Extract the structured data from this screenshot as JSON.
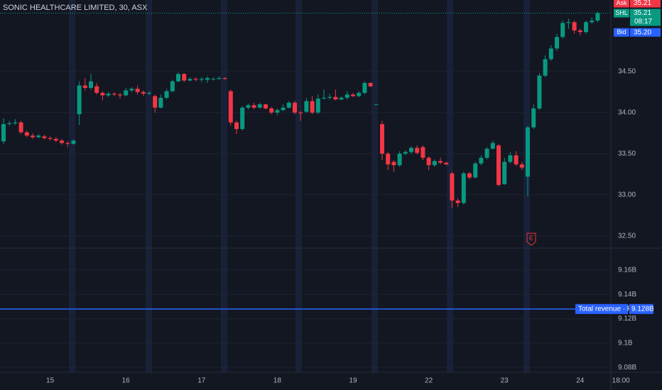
{
  "chart_data": [
    {
      "type": "candlestick",
      "title": "SONIC HEALTHCARE LIMITED, 30, ASX",
      "categories": [
        null,
        null,
        null,
        null,
        null,
        null,
        null,
        null,
        "15",
        null,
        null,
        null,
        null,
        null,
        null,
        null,
        null,
        null,
        null,
        null,
        null,
        "16",
        null,
        null,
        null,
        null,
        null,
        null,
        null,
        null,
        null,
        null,
        null,
        null,
        "17",
        null,
        null,
        null,
        null,
        null,
        null,
        null,
        null,
        null,
        null,
        null,
        null,
        "18",
        null,
        null,
        null,
        null,
        null,
        null,
        null,
        null,
        null,
        null,
        null,
        null,
        "19",
        null,
        null,
        null,
        null,
        null,
        null,
        null,
        null,
        null,
        null,
        null,
        null,
        "22",
        null,
        null,
        null,
        null,
        null,
        null,
        null,
        null,
        null,
        null,
        null,
        null,
        "23",
        null,
        null,
        null,
        null,
        null,
        null,
        null,
        null,
        null,
        null,
        null,
        null,
        "24",
        null,
        null,
        null,
        null,
        null,
        null,
        "18:00"
      ],
      "open": [
        33.65,
        33.86,
        33.87,
        33.88,
        33.76,
        33.72,
        33.7,
        33.71,
        33.69,
        33.68,
        33.66,
        33.63,
        33.62,
        33.98,
        34.33,
        34.3,
        34.32,
        34.24,
        34.21,
        34.23,
        34.22,
        34.21,
        34.27,
        34.29,
        34.25,
        34.23,
        34.2,
        34.06,
        34.18,
        34.26,
        34.38,
        34.47,
        34.39,
        34.41,
        34.4,
        34.4,
        34.41,
        34.41,
        34.42,
        34.26,
        33.88,
        33.8,
        34.06,
        34.09,
        34.06,
        34.1,
        34.05,
        34.0,
        34.03,
        34.06,
        34.12,
        34.0,
        34.01,
        34.14,
        34.0,
        34.17,
        34.18,
        34.19,
        34.16,
        34.18,
        34.22,
        34.2,
        34.24,
        34.36,
        34.1,
        33.86,
        33.5,
        33.4,
        33.36,
        33.5,
        33.52,
        33.57,
        33.58,
        33.45,
        33.36,
        33.41,
        33.39,
        33.26,
        32.93,
        32.9,
        33.26,
        33.21,
        33.38,
        33.45,
        33.56,
        33.6,
        33.13,
        33.4,
        33.48,
        33.37,
        33.22,
        33.82,
        34.05,
        34.45,
        34.65,
        34.78,
        34.92,
        35.09,
        35.1,
        35.0,
        34.98,
        35.1,
        35.12,
        null,
        null,
        null,
        null
      ],
      "high": [
        33.93,
        33.9,
        33.92,
        33.9,
        33.78,
        33.75,
        33.74,
        33.73,
        33.71,
        33.7,
        33.68,
        33.65,
        33.67,
        34.38,
        34.42,
        34.47,
        34.36,
        34.26,
        34.25,
        34.25,
        34.24,
        34.3,
        34.31,
        34.33,
        34.27,
        34.26,
        34.22,
        34.22,
        34.29,
        34.4,
        34.49,
        34.48,
        34.43,
        34.43,
        34.43,
        34.44,
        34.43,
        34.44,
        34.43,
        34.28,
        33.9,
        34.08,
        34.11,
        34.12,
        34.12,
        34.11,
        34.07,
        34.05,
        34.1,
        34.14,
        34.14,
        34.02,
        34.18,
        34.2,
        34.22,
        34.28,
        34.23,
        34.28,
        34.2,
        34.26,
        34.24,
        34.26,
        34.38,
        34.37,
        34.1,
        33.9,
        33.52,
        33.42,
        33.53,
        33.54,
        33.59,
        33.6,
        33.6,
        33.47,
        33.43,
        33.45,
        33.4,
        33.28,
        32.96,
        33.28,
        33.28,
        33.4,
        33.48,
        33.58,
        33.66,
        33.62,
        33.45,
        33.52,
        33.53,
        33.4,
        33.84,
        34.1,
        34.48,
        34.7,
        34.82,
        34.96,
        35.12,
        35.14,
        35.12,
        35.02,
        35.12,
        35.16,
        35.23,
        null,
        null,
        null,
        null
      ],
      "low": [
        33.62,
        33.84,
        33.85,
        33.74,
        33.7,
        33.68,
        33.69,
        33.67,
        33.66,
        33.64,
        33.61,
        33.58,
        33.61,
        33.85,
        34.27,
        34.28,
        34.22,
        34.15,
        34.19,
        34.2,
        34.17,
        34.2,
        34.25,
        34.22,
        34.2,
        34.21,
        34.0,
        34.05,
        34.16,
        34.25,
        34.37,
        34.37,
        34.38,
        34.38,
        34.37,
        34.36,
        34.39,
        34.4,
        34.4,
        33.84,
        33.74,
        33.78,
        34.04,
        34.04,
        34.05,
        34.04,
        33.98,
        33.97,
        34.02,
        34.05,
        33.98,
        33.9,
        34.0,
        33.98,
        33.98,
        34.16,
        34.16,
        34.15,
        34.15,
        34.16,
        34.19,
        34.19,
        34.22,
        34.31,
        34.1,
        33.42,
        33.3,
        33.28,
        33.34,
        33.48,
        33.5,
        33.49,
        33.42,
        33.3,
        33.34,
        33.37,
        33.36,
        32.84,
        32.85,
        32.88,
        33.19,
        33.2,
        33.36,
        33.43,
        33.55,
        33.1,
        33.12,
        33.38,
        33.35,
        33.3,
        32.98,
        33.8,
        34.03,
        34.43,
        34.63,
        34.75,
        34.9,
        35.02,
        34.96,
        34.94,
        34.96,
        35.08,
        35.1,
        null,
        null,
        null,
        null
      ],
      "close": [
        33.86,
        33.87,
        33.88,
        33.76,
        33.72,
        33.7,
        33.72,
        33.69,
        33.68,
        33.66,
        33.63,
        33.62,
        33.66,
        34.33,
        34.3,
        34.38,
        34.24,
        34.21,
        34.23,
        34.22,
        34.21,
        34.27,
        34.29,
        34.25,
        34.23,
        34.24,
        34.06,
        34.18,
        34.26,
        34.38,
        34.47,
        34.39,
        34.41,
        34.4,
        34.41,
        34.42,
        34.41,
        34.42,
        34.41,
        33.88,
        33.8,
        34.06,
        34.09,
        34.06,
        34.1,
        34.05,
        34.0,
        34.03,
        34.06,
        34.12,
        34.0,
        33.99,
        34.14,
        34.0,
        34.17,
        34.18,
        34.19,
        34.16,
        34.18,
        34.22,
        34.2,
        34.24,
        34.36,
        34.32,
        34.1,
        33.5,
        33.37,
        33.36,
        33.5,
        33.52,
        33.57,
        33.51,
        33.45,
        33.36,
        33.41,
        33.39,
        33.37,
        32.93,
        32.9,
        33.26,
        33.21,
        33.38,
        33.45,
        33.56,
        33.63,
        33.12,
        33.4,
        33.48,
        33.37,
        33.33,
        33.82,
        34.05,
        34.45,
        34.65,
        34.78,
        34.92,
        35.09,
        35.1,
        35.0,
        34.98,
        35.1,
        35.12,
        35.21,
        null,
        null,
        null,
        null
      ],
      "up_color": "#089981",
      "down_color": "#f23645",
      "ylim": [
        32.35,
        35.37
      ],
      "yticks": [
        {
          "value": 32.5,
          "label": "32.50"
        },
        {
          "value": 33,
          "label": "33.00"
        },
        {
          "value": 33.5,
          "label": "33.50"
        },
        {
          "value": 34,
          "label": "34.00"
        },
        {
          "value": 34.5,
          "label": "34.50"
        }
      ],
      "ask": {
        "name": "Ask",
        "value": 35.21,
        "color": "#f23645"
      },
      "last": {
        "name": "SHL",
        "value": 35.21,
        "countdown": "08:17",
        "color": "#089981"
      },
      "bid": {
        "name": "Bid",
        "value": 35.2,
        "label": "35.20",
        "color": "#2962ff"
      },
      "earnings_marker": "E",
      "grid": true
    },
    {
      "type": "line",
      "series": [
        {
          "name": "Total revenue · FY",
          "color": "#2962ff",
          "values": [
            9.128
          ],
          "value_labels": [
            "9.128B"
          ]
        }
      ],
      "ylim": [
        9.076,
        9.178
      ],
      "yticks": [
        {
          "value": 9.08,
          "label": "9.08B"
        },
        {
          "value": 9.1,
          "label": "9.1B"
        },
        {
          "value": 9.12,
          "label": "9.12B"
        },
        {
          "value": 9.14,
          "label": "9.14B"
        },
        {
          "value": 9.16,
          "label": "9.16B"
        }
      ],
      "grid": true
    }
  ]
}
